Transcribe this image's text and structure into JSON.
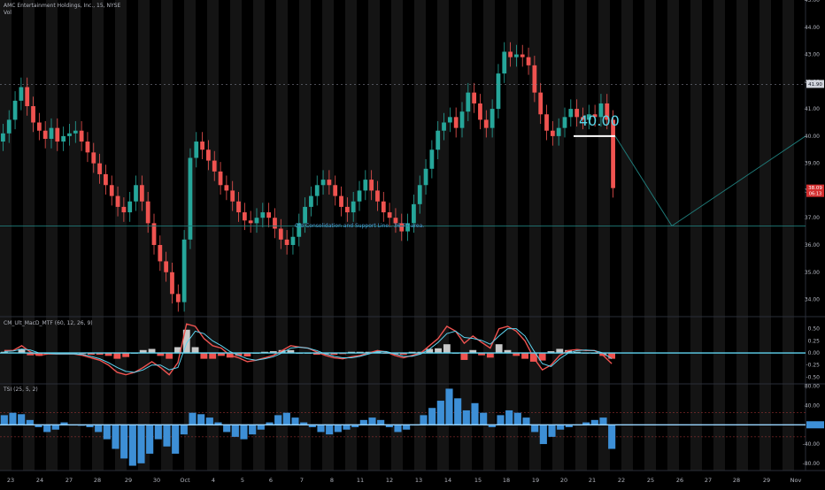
{
  "header": {
    "symbol_line": "AMC Entertainment Holdings, Inc., 15, NYSE",
    "volume_label": "Vol"
  },
  "indicators": {
    "macd_label": "CM_Ult_MacD_MTF (60, 12, 26, 9)",
    "tsi_label": "TSI (25, 5, 2)"
  },
  "annotations": {
    "target_label": "40.00",
    "support_label": "Old Consolidation and Support Line.. 36.70 area."
  },
  "price_tags": {
    "current_price": "38.09",
    "countdown": "06:13",
    "dashed_line_price": "41.90"
  },
  "colors": {
    "background": "#000000",
    "up_candle": "#26a69a",
    "down_candle": "#ef5350",
    "target_line": "#ffffff",
    "target_text": "#5ad6e8",
    "support_line": "#1f7a78",
    "projection_line": "#1f7a78",
    "current_price_tag": "#d32f2f",
    "macd_zero_line": "#5fd4f0",
    "tsi_bars": "#3d8fd6",
    "grid_stripe": "#141414"
  },
  "chart_data": [
    {
      "type": "candlestick",
      "title": "AMC Entertainment Holdings, Inc., 15, NYSE",
      "x_tick_labels": [
        "23",
        "24",
        "27",
        "28",
        "29",
        "30",
        "Oct",
        "4",
        "5",
        "6",
        "7",
        "8",
        "11",
        "12",
        "13",
        "14",
        "15",
        "18",
        "19",
        "20",
        "21",
        "22",
        "25",
        "26",
        "27",
        "28",
        "29",
        "Nov"
      ],
      "y_tick_labels": [
        "34.00",
        "35.00",
        "36.00",
        "37.00",
        "38.00",
        "39.00",
        "40.00",
        "41.00",
        "42.00",
        "43.00",
        "44.00",
        "45.00"
      ],
      "ylim": [
        33.4,
        45.0
      ],
      "series": [
        {
          "values": [
            40.1,
            40.6,
            41.3,
            41.8,
            41.1,
            40.5,
            40.2,
            39.9,
            40.3,
            39.8,
            40.0,
            40.1,
            40.2,
            39.8,
            39.4,
            39.0,
            38.6,
            38.2,
            37.8,
            37.4,
            37.2,
            37.6,
            38.2,
            37.6,
            36.8,
            36.0,
            35.4,
            35.0,
            34.2,
            33.9,
            36.2,
            39.2,
            39.8,
            39.5,
            39.1,
            38.7,
            38.2,
            38.0,
            37.6,
            37.2,
            36.9,
            36.8,
            37.0,
            37.2,
            37.0,
            36.6,
            36.2,
            36.0,
            36.3,
            36.8,
            37.4,
            37.8,
            38.2,
            38.4,
            38.2,
            37.8,
            37.4,
            37.2,
            37.6,
            38.0,
            38.4,
            38.0,
            37.6,
            37.2,
            37.0,
            36.8,
            36.5,
            36.8,
            37.5,
            38.2,
            38.8,
            39.5,
            40.2,
            40.5,
            40.7,
            40.3,
            40.9,
            41.6,
            41.2,
            40.6,
            40.3,
            41.0,
            42.3,
            43.1,
            42.9,
            43.0,
            42.9,
            42.6,
            41.6,
            40.8,
            40.2,
            40.0,
            40.3,
            40.7,
            41.0,
            40.7,
            40.6,
            40.8,
            40.7,
            41.2,
            40.6,
            38.09
          ]
        }
      ],
      "horizontal_lines": [
        {
          "label": "40.00",
          "price": 40.0
        },
        {
          "label": "Old Consolidation and Support Line.. 36.70 area.",
          "price": 36.7
        }
      ],
      "projection_path": [
        {
          "date": "21",
          "price": 40.0
        },
        {
          "date": "26",
          "price": 36.7
        },
        {
          "date": "Nov",
          "price": 40.0
        }
      ],
      "current_price": 38.09,
      "grid": true
    },
    {
      "type": "line",
      "title": "CM_Ult_MacD_MTF (60, 12, 26, 9)",
      "y_tick_labels": [
        "-0.50",
        "-0.25",
        "0.00",
        "0.25",
        "0.50"
      ],
      "ylim": [
        -0.62,
        0.75
      ],
      "series": [
        {
          "values": [
            0.05,
            0.05,
            0.15,
            0.02,
            -0.05,
            -0.02,
            -0.02,
            -0.02,
            -0.02,
            -0.05,
            -0.1,
            -0.15,
            -0.25,
            -0.4,
            -0.45,
            -0.4,
            -0.3,
            -0.18,
            -0.3,
            -0.45,
            -0.2,
            0.6,
            0.55,
            0.3,
            0.15,
            0.1,
            -0.05,
            -0.1,
            -0.18,
            -0.15,
            -0.1,
            -0.05,
            0.05,
            0.15,
            0.12,
            0.1,
            0.02,
            -0.05,
            -0.1,
            -0.12,
            -0.08,
            -0.05,
            0.0,
            0.05,
            0.02,
            -0.05,
            -0.1,
            -0.05,
            0.0,
            0.15,
            0.3,
            0.55,
            0.45,
            0.2,
            0.35,
            0.22,
            0.1,
            0.5,
            0.55,
            0.45,
            0.25,
            -0.1,
            -0.35,
            -0.25,
            -0.05,
            0.05,
            0.07,
            0.05,
            0.05,
            -0.05,
            -0.22
          ]
        },
        {
          "values": [
            0.03,
            0.04,
            0.08,
            0.06,
            0.0,
            -0.01,
            -0.02,
            -0.02,
            -0.02,
            -0.03,
            -0.07,
            -0.12,
            -0.2,
            -0.3,
            -0.38,
            -0.4,
            -0.35,
            -0.25,
            -0.25,
            -0.35,
            -0.3,
            0.2,
            0.45,
            0.4,
            0.25,
            0.15,
            0.03,
            -0.05,
            -0.12,
            -0.15,
            -0.12,
            -0.08,
            0.0,
            0.1,
            0.12,
            0.1,
            0.05,
            -0.02,
            -0.07,
            -0.1,
            -0.1,
            -0.07,
            -0.02,
            0.03,
            0.03,
            -0.02,
            -0.07,
            -0.07,
            -0.02,
            0.08,
            0.22,
            0.4,
            0.45,
            0.32,
            0.3,
            0.26,
            0.18,
            0.35,
            0.5,
            0.5,
            0.35,
            0.05,
            -0.22,
            -0.28,
            -0.12,
            0.0,
            0.05,
            0.06,
            0.05,
            0.0,
            -0.12
          ]
        }
      ],
      "zero_line": 0.0
    },
    {
      "type": "bar",
      "title": "TSI (25, 5, 2)",
      "y_tick_labels": [
        "-80.00",
        "-40.00",
        "0.00",
        "40.00",
        "80.00"
      ],
      "ylim": [
        -95,
        85
      ],
      "reference_lines": [
        25,
        -25
      ],
      "values": [
        20,
        25,
        22,
        10,
        -5,
        -15,
        -10,
        5,
        0,
        -2,
        -5,
        -15,
        -30,
        -50,
        -70,
        -85,
        -80,
        -60,
        -30,
        -45,
        -60,
        -20,
        25,
        22,
        15,
        5,
        -15,
        -25,
        -30,
        -20,
        -10,
        5,
        20,
        25,
        15,
        5,
        -5,
        -15,
        -20,
        -15,
        -10,
        -5,
        10,
        15,
        10,
        -5,
        -15,
        -10,
        0,
        20,
        35,
        50,
        75,
        55,
        30,
        45,
        25,
        -5,
        20,
        30,
        25,
        15,
        -15,
        -40,
        -25,
        -10,
        -5,
        0,
        5,
        10,
        15,
        -50
      ]
    }
  ]
}
